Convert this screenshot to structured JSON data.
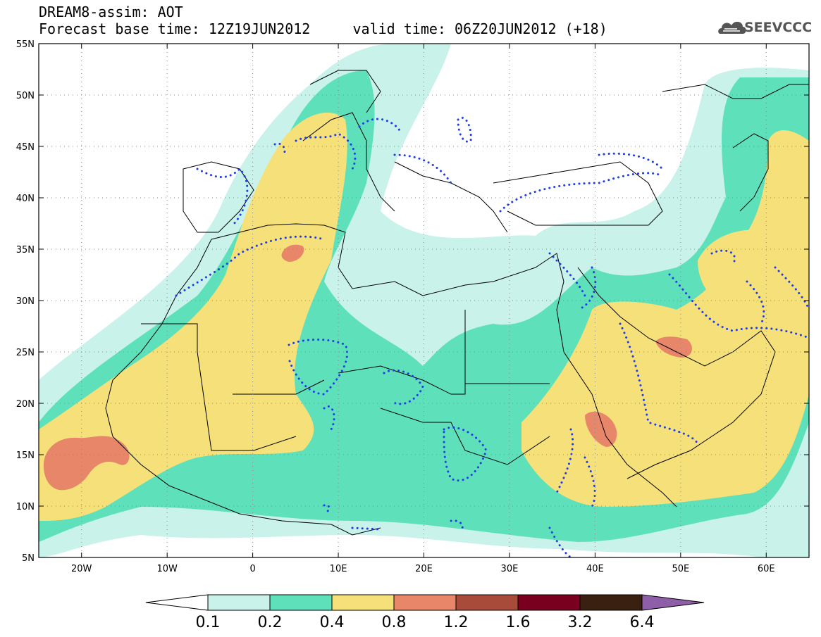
{
  "title": {
    "line1": "DREAM8-assim: AOT",
    "line2": "Forecast base time: 12Z19JUN2012     valid time: 06Z20JUN2012 (+18)"
  },
  "logo": {
    "text": "SEEVCCC",
    "icon": "cloud-icon"
  },
  "map": {
    "lon_range": [
      -25,
      65
    ],
    "lat_range": [
      5,
      55
    ],
    "lat_ticks": [
      "5N",
      "10N",
      "15N",
      "20N",
      "25N",
      "30N",
      "35N",
      "40N",
      "45N",
      "50N",
      "55N"
    ],
    "lat_values": [
      5,
      10,
      15,
      20,
      25,
      30,
      35,
      40,
      45,
      50,
      55
    ],
    "lon_ticks": [
      "20W",
      "10W",
      "0",
      "10E",
      "20E",
      "30E",
      "40E",
      "50E",
      "60E"
    ],
    "lon_values": [
      -20,
      -10,
      0,
      10,
      20,
      30,
      40,
      50,
      60
    ],
    "grid": "dotted"
  },
  "colorbar": {
    "levels": [
      "0.1",
      "0.2",
      "0.4",
      "0.8",
      "1.2",
      "1.6",
      "3.2",
      "6.4"
    ],
    "colors": [
      "#c8f2ea",
      "#5ee0bb",
      "#f6e07a",
      "#e8866a",
      "#a84b3a",
      "#7a0020",
      "#3a2010",
      "#8e5fa8"
    ]
  },
  "palette": {
    "ocean": "#ffffff",
    "c01": "#c8f2ea",
    "c02": "#5ee0bb",
    "c04": "#f6e07a",
    "c08": "#e8866a",
    "dotted": "#1e3ce8"
  }
}
